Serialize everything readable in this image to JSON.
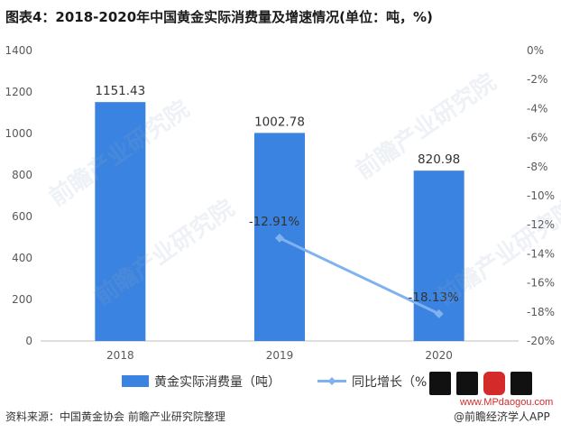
{
  "title": "图表4：2018-2020年中国黄金实际消费量及增速情况(单位：吨，%)",
  "source": "资料来源：中国黄金协会 前瞻产业研究院整理",
  "credit": "@前瞻经济学人APP",
  "watermark": {
    "text": "前瞻产业研究院",
    "logo_url": "www.MPdaogou.com"
  },
  "colors": {
    "bar": "#3a83e0",
    "line": "#7fb2ee",
    "grid": "#d9d9d9"
  },
  "chart_data": {
    "type": "bar",
    "categories": [
      "2018",
      "2019",
      "2020"
    ],
    "series": [
      {
        "name": "黄金实际消费量（吨）",
        "type": "bar",
        "axis": "left",
        "values": [
          1151.43,
          1002.78,
          820.98
        ],
        "labels": [
          "1151.43",
          "1002.78",
          "820.98"
        ]
      },
      {
        "name": "同比增长（%）",
        "legend_label": "同比增长（%",
        "type": "line",
        "axis": "right",
        "values": [
          null,
          -12.91,
          -18.13
        ],
        "labels": [
          "",
          "-12.91%",
          "-18.13%"
        ]
      }
    ],
    "y_left": {
      "min": 0,
      "max": 1400,
      "ticks": [
        "0",
        "200",
        "400",
        "600",
        "800",
        "1000",
        "1200",
        "1400"
      ]
    },
    "y_right": {
      "min": -20,
      "max": 0,
      "ticks": [
        "0%",
        "-2%",
        "-4%",
        "-6%",
        "-8%",
        "-10%",
        "-12%",
        "-14%",
        "-16%",
        "-18%",
        "-20%"
      ]
    },
    "grid": false,
    "legend_position": "bottom"
  }
}
